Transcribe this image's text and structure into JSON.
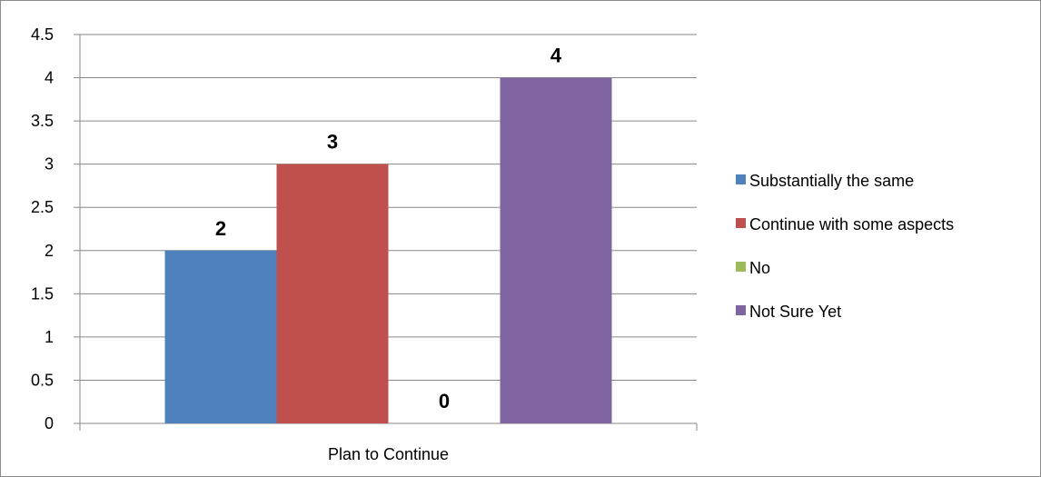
{
  "chart_data": {
    "type": "bar",
    "categories": [
      "Plan to Continue"
    ],
    "series": [
      {
        "name": "Substantially the same",
        "values": [
          2
        ],
        "color": "#4F81BD"
      },
      {
        "name": "Continue with some aspects",
        "values": [
          3
        ],
        "color": "#C0504D"
      },
      {
        "name": "No",
        "values": [
          0
        ],
        "color": "#9BBB59"
      },
      {
        "name": "Not Sure Yet",
        "values": [
          4
        ],
        "color": "#8064A2"
      }
    ],
    "ylim": [
      0,
      4.5
    ],
    "yticks": [
      "0",
      "0.5",
      "1",
      "1.5",
      "2",
      "2.5",
      "3",
      "3.5",
      "4",
      "4.5"
    ],
    "grid": true,
    "legend": "right",
    "data_labels": [
      "2",
      "3",
      "0",
      "4"
    ]
  }
}
